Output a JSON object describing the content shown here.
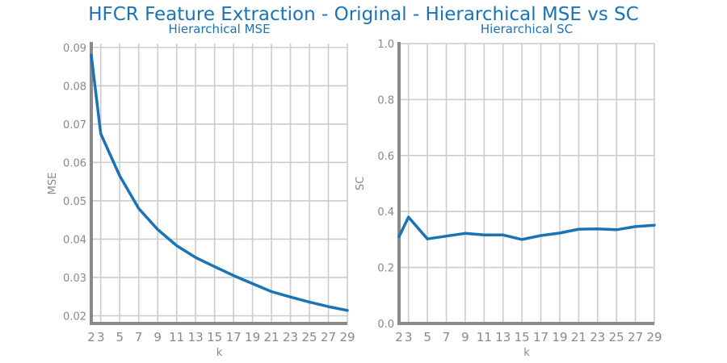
{
  "title": "HFCR Feature Extraction - Original - Hierarchical MSE vs SC",
  "chart_data": [
    {
      "type": "line",
      "title": "Hierarchical MSE",
      "xlabel": "k",
      "ylabel": "MSE",
      "x": [
        2,
        3,
        5,
        7,
        9,
        11,
        13,
        15,
        17,
        19,
        21,
        23,
        25,
        27,
        29
      ],
      "xticks": [
        "2",
        "3",
        "5",
        "7",
        "9",
        "11",
        "13",
        "15",
        "17",
        "19",
        "21",
        "23",
        "25",
        "27",
        "29"
      ],
      "xlim": [
        2,
        29
      ],
      "ylim": [
        0.018,
        0.091
      ],
      "yticks": [
        "0.02",
        "0.03",
        "0.04",
        "0.05",
        "0.06",
        "0.07",
        "0.08",
        "0.09"
      ],
      "ytick_values": [
        0.02,
        0.03,
        0.04,
        0.05,
        0.06,
        0.07,
        0.08,
        0.09
      ],
      "grid": true,
      "series": [
        {
          "color": "#1a73b4",
          "values": [
            0.088,
            0.0675,
            0.0565,
            0.048,
            0.0425,
            0.0383,
            0.0352,
            0.0328,
            0.0305,
            0.0284,
            0.0263,
            0.0249,
            0.0236,
            0.0224,
            0.0214
          ]
        }
      ]
    },
    {
      "type": "line",
      "title": "Hierarchical SC",
      "xlabel": "k",
      "ylabel": "SC",
      "x": [
        2,
        3,
        5,
        7,
        9,
        11,
        13,
        15,
        17,
        19,
        21,
        23,
        25,
        27,
        29
      ],
      "xticks": [
        "2",
        "3",
        "5",
        "7",
        "9",
        "11",
        "13",
        "15",
        "17",
        "19",
        "21",
        "23",
        "25",
        "27",
        "29"
      ],
      "xlim": [
        2,
        29
      ],
      "ylim": [
        0.0,
        1.0
      ],
      "yticks": [
        "0.0",
        "0.2",
        "0.4",
        "0.6",
        "0.8",
        "1.0"
      ],
      "ytick_values": [
        0.0,
        0.2,
        0.4,
        0.6,
        0.8,
        1.0
      ],
      "grid": true,
      "series": [
        {
          "color": "#1a73b4",
          "values": [
            0.31,
            0.38,
            0.302,
            0.312,
            0.322,
            0.316,
            0.316,
            0.3,
            0.314,
            0.323,
            0.337,
            0.338,
            0.335,
            0.346,
            0.351
          ]
        }
      ]
    }
  ]
}
